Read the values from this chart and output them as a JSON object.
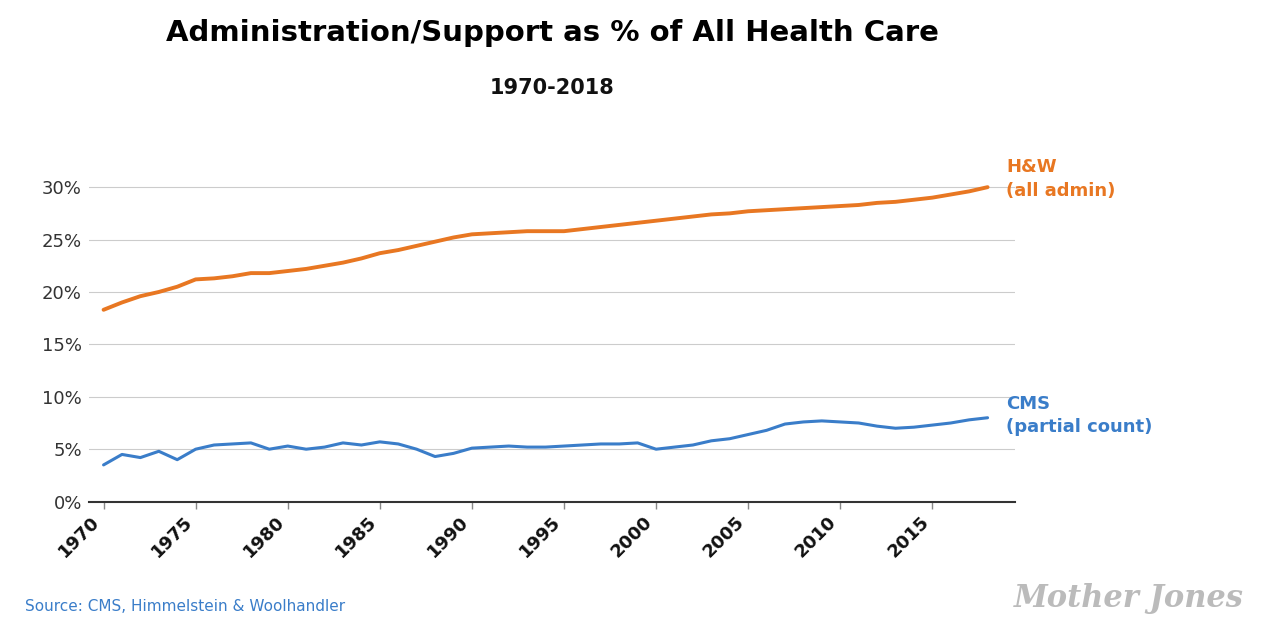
{
  "title": "Administration/Support as % of All Health Care",
  "subtitle": "1970-2018",
  "source": "Source: CMS, Himmelstein & Woolhandler",
  "watermark": "Mother Jones",
  "hw_label": "H&W\n(all admin)",
  "cms_label": "CMS\n(partial count)",
  "hw_color": "#E87722",
  "cms_color": "#3A7DC9",
  "title_color": "#000000",
  "subtitle_color": "#111111",
  "source_color": "#3A7DC9",
  "watermark_color": "#bbbbbb",
  "background_color": "#ffffff",
  "ylim": [
    0,
    0.335
  ],
  "yticks": [
    0,
    0.05,
    0.1,
    0.15,
    0.2,
    0.25,
    0.3
  ],
  "xlim": [
    1969.2,
    2019.5
  ],
  "xticks": [
    1970,
    1975,
    1980,
    1985,
    1990,
    1995,
    2000,
    2005,
    2010,
    2015
  ],
  "hw_data": {
    "years": [
      1970,
      1971,
      1972,
      1973,
      1974,
      1975,
      1976,
      1977,
      1978,
      1979,
      1980,
      1981,
      1982,
      1983,
      1984,
      1985,
      1986,
      1987,
      1988,
      1989,
      1990,
      1991,
      1992,
      1993,
      1994,
      1995,
      1996,
      1997,
      1998,
      1999,
      2000,
      2001,
      2002,
      2003,
      2004,
      2005,
      2006,
      2007,
      2008,
      2009,
      2010,
      2011,
      2012,
      2013,
      2014,
      2015,
      2016,
      2017,
      2018
    ],
    "values": [
      0.183,
      0.19,
      0.196,
      0.2,
      0.205,
      0.212,
      0.213,
      0.215,
      0.218,
      0.218,
      0.22,
      0.222,
      0.225,
      0.228,
      0.232,
      0.237,
      0.24,
      0.244,
      0.248,
      0.252,
      0.255,
      0.256,
      0.257,
      0.258,
      0.258,
      0.258,
      0.26,
      0.262,
      0.264,
      0.266,
      0.268,
      0.27,
      0.272,
      0.274,
      0.275,
      0.277,
      0.278,
      0.279,
      0.28,
      0.281,
      0.282,
      0.283,
      0.285,
      0.286,
      0.288,
      0.29,
      0.293,
      0.296,
      0.3
    ]
  },
  "cms_data": {
    "years": [
      1970,
      1971,
      1972,
      1973,
      1974,
      1975,
      1976,
      1977,
      1978,
      1979,
      1980,
      1981,
      1982,
      1983,
      1984,
      1985,
      1986,
      1987,
      1988,
      1989,
      1990,
      1991,
      1992,
      1993,
      1994,
      1995,
      1996,
      1997,
      1998,
      1999,
      2000,
      2001,
      2002,
      2003,
      2004,
      2005,
      2006,
      2007,
      2008,
      2009,
      2010,
      2011,
      2012,
      2013,
      2014,
      2015,
      2016,
      2017,
      2018
    ],
    "values": [
      0.035,
      0.045,
      0.042,
      0.048,
      0.04,
      0.05,
      0.054,
      0.055,
      0.056,
      0.05,
      0.053,
      0.05,
      0.052,
      0.056,
      0.054,
      0.057,
      0.055,
      0.05,
      0.043,
      0.046,
      0.051,
      0.052,
      0.053,
      0.052,
      0.052,
      0.053,
      0.054,
      0.055,
      0.055,
      0.056,
      0.05,
      0.052,
      0.054,
      0.058,
      0.06,
      0.064,
      0.068,
      0.074,
      0.076,
      0.077,
      0.076,
      0.075,
      0.072,
      0.07,
      0.071,
      0.073,
      0.075,
      0.078,
      0.08
    ]
  }
}
